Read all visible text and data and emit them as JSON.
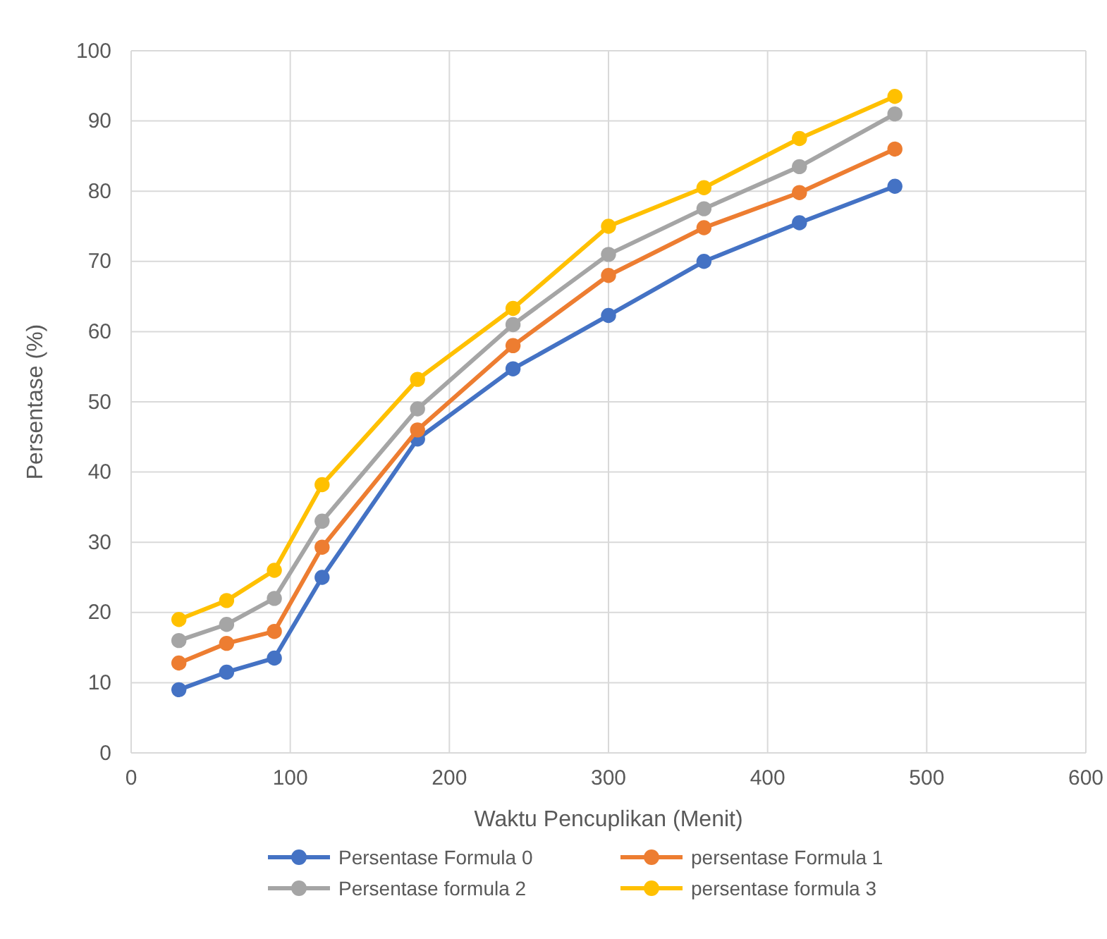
{
  "chart_data": {
    "type": "line",
    "xlabel": "Waktu Pencuplikan (Menit)",
    "ylabel": "Persentase (%)",
    "x": [
      30,
      60,
      90,
      120,
      180,
      240,
      300,
      360,
      420,
      480
    ],
    "series": [
      {
        "name": "Persentase Formula 0",
        "color": "#4472c4",
        "values": [
          9,
          11.5,
          13.5,
          25,
          44.7,
          54.7,
          62.3,
          70,
          75.5,
          80.7
        ]
      },
      {
        "name": "persentase Formula 1",
        "color": "#ed7d31",
        "values": [
          12.8,
          15.6,
          17.3,
          29.3,
          46,
          58,
          68,
          74.8,
          79.8,
          86
        ]
      },
      {
        "name": "Persentase formula 2",
        "color": "#a5a5a5",
        "values": [
          16,
          18.3,
          22,
          33,
          49,
          61,
          71,
          77.5,
          83.5,
          91
        ]
      },
      {
        "name": "persentase formula 3",
        "color": "#ffc000",
        "values": [
          19,
          21.7,
          26,
          38.2,
          53.2,
          63.3,
          75,
          80.5,
          87.5,
          93.5
        ]
      }
    ],
    "xlim": [
      0,
      600
    ],
    "xticks": [
      0,
      100,
      200,
      300,
      400,
      500,
      600
    ],
    "ylim": [
      0,
      100
    ],
    "yticks": [
      0,
      10,
      20,
      30,
      40,
      50,
      60,
      70,
      80,
      90,
      100
    ],
    "grid": true,
    "legend": "bottom",
    "marker": "circle",
    "line_style": "solid"
  }
}
